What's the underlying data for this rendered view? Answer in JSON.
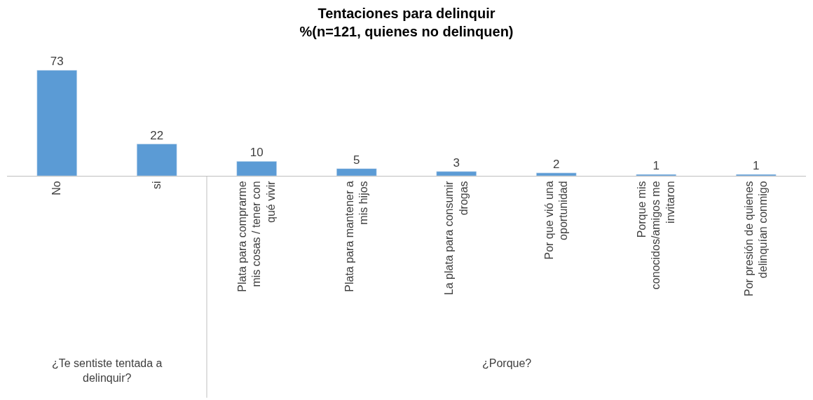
{
  "chart_data": {
    "type": "bar",
    "title": "Tentaciones para delinquir\n%(n=121, quienes no delinquen)",
    "categories": [
      "No",
      "si",
      "Plata para comprarme mis cosas / tener con qué vivir",
      "Plata para mantener a mis hijos",
      "La plata para consumir drogas",
      "Por que vió una oportunidad",
      "Porque mis conocidos/amigos me invitaron",
      "Por presión de quienes delinquían conmigo"
    ],
    "values": [
      73,
      22,
      10,
      5,
      3,
      2,
      1,
      1
    ],
    "color": "#5b9bd5",
    "data_labels": true,
    "annotations": [
      "¿Te sentiste tentada a delinquir?",
      "¿Porque?"
    ]
  }
}
